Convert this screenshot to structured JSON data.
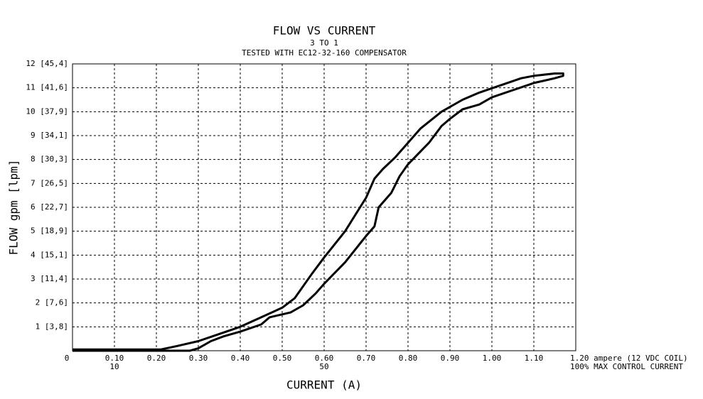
{
  "chart_data": {
    "type": "line",
    "title": "FLOW VS CURRENT",
    "subtitle": "3 TO 1",
    "note": "TESTED WITH EC12-32-160 COMPENSATOR",
    "xlabel": "CURRENT (A)",
    "ylabel": "FLOW gpm [lpm]",
    "xlim": [
      0,
      1.2
    ],
    "ylim": [
      0,
      12
    ],
    "xticks": [
      0,
      {
        "value": 0.1,
        "label": "0.10"
      },
      {
        "value": 0.2,
        "label": "0.20"
      },
      {
        "value": 0.3,
        "label": "0.30"
      },
      {
        "value": 0.4,
        "label": "0.40"
      },
      {
        "value": 0.5,
        "label": "0.50"
      },
      {
        "value": 0.6,
        "label": "0.60"
      },
      {
        "value": 0.7,
        "label": "0.70"
      },
      {
        "value": 0.8,
        "label": "0.80"
      },
      {
        "value": 0.9,
        "label": "0.90"
      },
      {
        "value": 1.0,
        "label": "1.00"
      },
      {
        "value": 1.1,
        "label": "1.10"
      },
      {
        "value": 1.2,
        "label": "1.20 ampere (12 VDC COIL)"
      }
    ],
    "x_sublabels": [
      {
        "value": 0.1,
        "label": "10"
      },
      {
        "value": 0.6,
        "label": "50"
      },
      {
        "value": 1.2,
        "label": "100% MAX CONTROL CURRENT"
      }
    ],
    "yticks": [
      {
        "value": 1,
        "label": "1 [3,8]"
      },
      {
        "value": 2,
        "label": "2 [7,6]"
      },
      {
        "value": 3,
        "label": "3 [11,4]"
      },
      {
        "value": 4,
        "label": "4 [15,1]"
      },
      {
        "value": 5,
        "label": "5 [18,9]"
      },
      {
        "value": 6,
        "label": "6 [22,7]"
      },
      {
        "value": 7,
        "label": "7 [26,5]"
      },
      {
        "value": 8,
        "label": "8 [30,3]"
      },
      {
        "value": 9,
        "label": "9 [34,1]"
      },
      {
        "value": 10,
        "label": "10 [37,9]"
      },
      {
        "value": 11,
        "label": "11 [41,6]"
      },
      {
        "value": 12,
        "label": "12 [45,4]"
      }
    ],
    "grid": true,
    "series": [
      {
        "color": "#000000",
        "x": [
          0,
          0.1,
          0.2,
          0.28,
          0.3,
          0.33,
          0.36,
          0.4,
          0.45,
          0.47,
          0.52,
          0.55,
          0.58,
          0.6,
          0.65,
          0.7,
          0.72,
          0.73,
          0.76,
          0.78,
          0.8,
          0.85,
          0.88,
          0.9,
          0.93,
          0.97,
          1.0,
          1.05,
          1.1,
          1.15,
          1.17,
          1.17,
          1.15,
          1.1,
          1.07,
          1.02,
          0.97,
          0.93,
          0.88,
          0.83,
          0.8,
          0.77,
          0.74,
          0.72,
          0.7,
          0.65,
          0.6,
          0.57,
          0.53,
          0.5,
          0.45,
          0.4,
          0.35,
          0.3,
          0.25,
          0.21,
          0.1,
          0
        ],
        "values": [
          0,
          0,
          0,
          0,
          0.1,
          0.4,
          0.6,
          0.8,
          1.1,
          1.4,
          1.6,
          1.9,
          2.4,
          2.8,
          3.7,
          4.8,
          5.2,
          6.0,
          6.6,
          7.3,
          7.8,
          8.7,
          9.4,
          9.7,
          10.1,
          10.3,
          10.6,
          10.9,
          11.2,
          11.4,
          11.5,
          11.6,
          11.6,
          11.5,
          11.4,
          11.1,
          10.8,
          10.5,
          10.0,
          9.3,
          8.7,
          8.1,
          7.6,
          7.2,
          6.4,
          5.0,
          3.9,
          3.2,
          2.2,
          1.8,
          1.4,
          1.0,
          0.7,
          0.4,
          0.2,
          0.05,
          0.05,
          0.05
        ]
      }
    ]
  }
}
